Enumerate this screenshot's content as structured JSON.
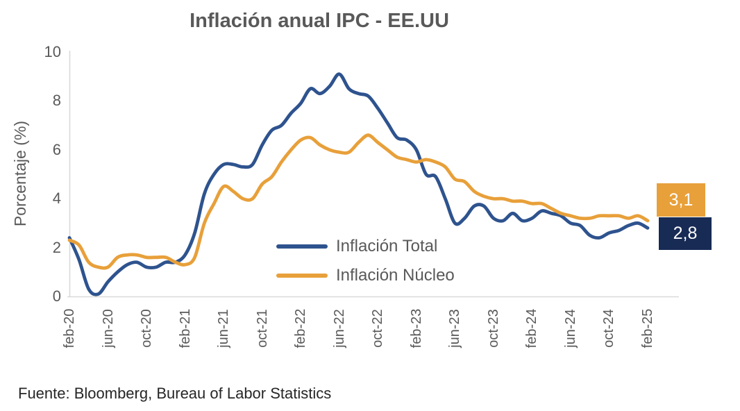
{
  "footer": {
    "source": "Fuente: Bloomberg, Bureau of Labor Statistics"
  },
  "colors": {
    "total_line": "#2E538E",
    "core_line": "#E8A03A",
    "total_box": "#182B55",
    "core_box": "#E8A03A",
    "axis": "#D9D9D9",
    "text_gray": "#595959"
  },
  "chart_data": {
    "type": "line",
    "title": "Inflación anual IPC - EE.UU",
    "xlabel": "",
    "ylabel": "Porcentaje (%)",
    "ylim": [
      0,
      10
    ],
    "yticks": [
      0,
      2,
      4,
      6,
      8,
      10
    ],
    "grid": false,
    "legend_position": "inside-bottom-center",
    "x_tick_every": 4,
    "x_tick_labels": [
      "feb-20",
      "jun-20",
      "oct-20",
      "feb-21",
      "jun-21",
      "oct-21",
      "feb-22",
      "jun-22",
      "oct-22",
      "feb-23",
      "jun-23",
      "oct-23",
      "feb-24",
      "jun-24",
      "oct-24",
      "feb-25"
    ],
    "categories": [
      "feb-20",
      "mar-20",
      "abr-20",
      "may-20",
      "jun-20",
      "jul-20",
      "ago-20",
      "sep-20",
      "oct-20",
      "nov-20",
      "dic-20",
      "ene-21",
      "feb-21",
      "mar-21",
      "abr-21",
      "may-21",
      "jun-21",
      "jul-21",
      "ago-21",
      "sep-21",
      "oct-21",
      "nov-21",
      "dic-21",
      "ene-22",
      "feb-22",
      "mar-22",
      "abr-22",
      "may-22",
      "jun-22",
      "jul-22",
      "ago-22",
      "sep-22",
      "oct-22",
      "nov-22",
      "dic-22",
      "ene-23",
      "feb-23",
      "mar-23",
      "abr-23",
      "may-23",
      "jun-23",
      "jul-23",
      "ago-23",
      "sep-23",
      "oct-23",
      "nov-23",
      "dic-23",
      "ene-24",
      "feb-24",
      "mar-24",
      "abr-24",
      "may-24",
      "jun-24",
      "jul-24",
      "ago-24",
      "sep-24",
      "oct-24",
      "nov-24",
      "dic-24",
      "ene-25",
      "feb-25"
    ],
    "series": [
      {
        "name": "Inflación Total",
        "color": "#2E538E",
        "values": [
          2.4,
          1.5,
          0.3,
          0.1,
          0.6,
          1.0,
          1.3,
          1.4,
          1.2,
          1.2,
          1.4,
          1.4,
          1.7,
          2.6,
          4.2,
          5.0,
          5.4,
          5.4,
          5.3,
          5.4,
          6.2,
          6.8,
          7.0,
          7.5,
          7.9,
          8.5,
          8.3,
          8.6,
          9.1,
          8.5,
          8.3,
          8.2,
          7.7,
          7.1,
          6.5,
          6.4,
          6.0,
          5.0,
          4.9,
          4.0,
          3.0,
          3.2,
          3.7,
          3.7,
          3.2,
          3.1,
          3.4,
          3.1,
          3.2,
          3.5,
          3.4,
          3.3,
          3.0,
          2.9,
          2.5,
          2.4,
          2.6,
          2.7,
          2.9,
          3.0,
          2.8
        ]
      },
      {
        "name": "Inflación Núcleo",
        "color": "#E8A03A",
        "values": [
          2.3,
          2.1,
          1.4,
          1.2,
          1.2,
          1.6,
          1.7,
          1.7,
          1.6,
          1.6,
          1.6,
          1.4,
          1.3,
          1.6,
          3.0,
          3.8,
          4.5,
          4.3,
          4.0,
          4.0,
          4.6,
          4.9,
          5.5,
          6.0,
          6.4,
          6.5,
          6.2,
          6.0,
          5.9,
          5.9,
          6.3,
          6.6,
          6.3,
          6.0,
          5.7,
          5.6,
          5.5,
          5.6,
          5.5,
          5.3,
          4.8,
          4.7,
          4.3,
          4.1,
          4.0,
          4.0,
          3.9,
          3.9,
          3.8,
          3.8,
          3.6,
          3.4,
          3.3,
          3.2,
          3.2,
          3.3,
          3.3,
          3.3,
          3.2,
          3.3,
          3.1
        ]
      }
    ],
    "end_labels": {
      "core": "3,1",
      "total": "2,8"
    }
  }
}
